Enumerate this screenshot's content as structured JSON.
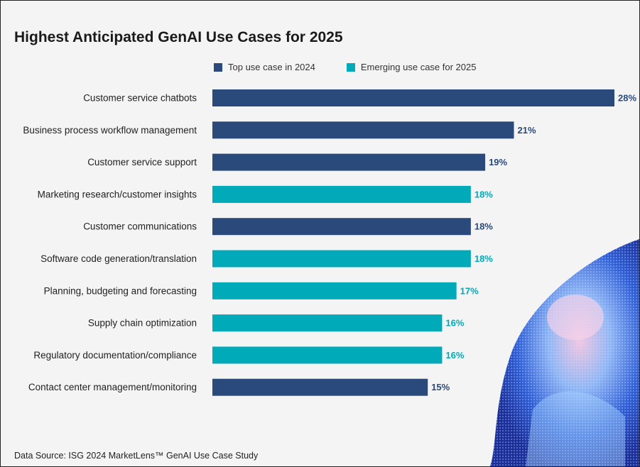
{
  "title": "Highest Anticipated GenAI Use Cases for 2025",
  "source": "Data Source: ISG 2024 MarketLens™ GenAI Use Case Study",
  "colors": {
    "top_2024": "#2a4a7b",
    "emerging_2025": "#00aab9"
  },
  "chart_data": {
    "type": "bar",
    "orientation": "horizontal",
    "title": "Highest Anticipated GenAI Use Cases for 2025",
    "legend": [
      {
        "key": "top_2024",
        "label": "Top use case in 2024"
      },
      {
        "key": "emerging_2025",
        "label": "Emerging use case for 2025"
      }
    ],
    "legend_position": "top",
    "grid": false,
    "xlim": [
      0,
      28
    ],
    "bars": [
      {
        "category": "Customer service chatbots",
        "value": 28,
        "label": "28%",
        "group": "top_2024"
      },
      {
        "category": "Business process workflow management",
        "value": 21,
        "label": "21%",
        "group": "top_2024"
      },
      {
        "category": "Customer service support",
        "value": 19,
        "label": "19%",
        "group": "top_2024"
      },
      {
        "category": "Marketing research/customer insights",
        "value": 18,
        "label": "18%",
        "group": "emerging_2025"
      },
      {
        "category": "Customer communications",
        "value": 18,
        "label": "18%",
        "group": "top_2024"
      },
      {
        "category": "Software code generation/translation",
        "value": 18,
        "label": "18%",
        "group": "emerging_2025"
      },
      {
        "category": "Planning, budgeting and forecasting",
        "value": 17,
        "label": "17%",
        "group": "emerging_2025"
      },
      {
        "category": "Supply chain optimization",
        "value": 16,
        "label": "16%",
        "group": "emerging_2025"
      },
      {
        "category": "Regulatory documentation/compliance",
        "value": 16,
        "label": "16%",
        "group": "emerging_2025"
      },
      {
        "category": "Contact center management/monitoring",
        "value": 15,
        "label": "15%",
        "group": "top_2024"
      }
    ]
  }
}
